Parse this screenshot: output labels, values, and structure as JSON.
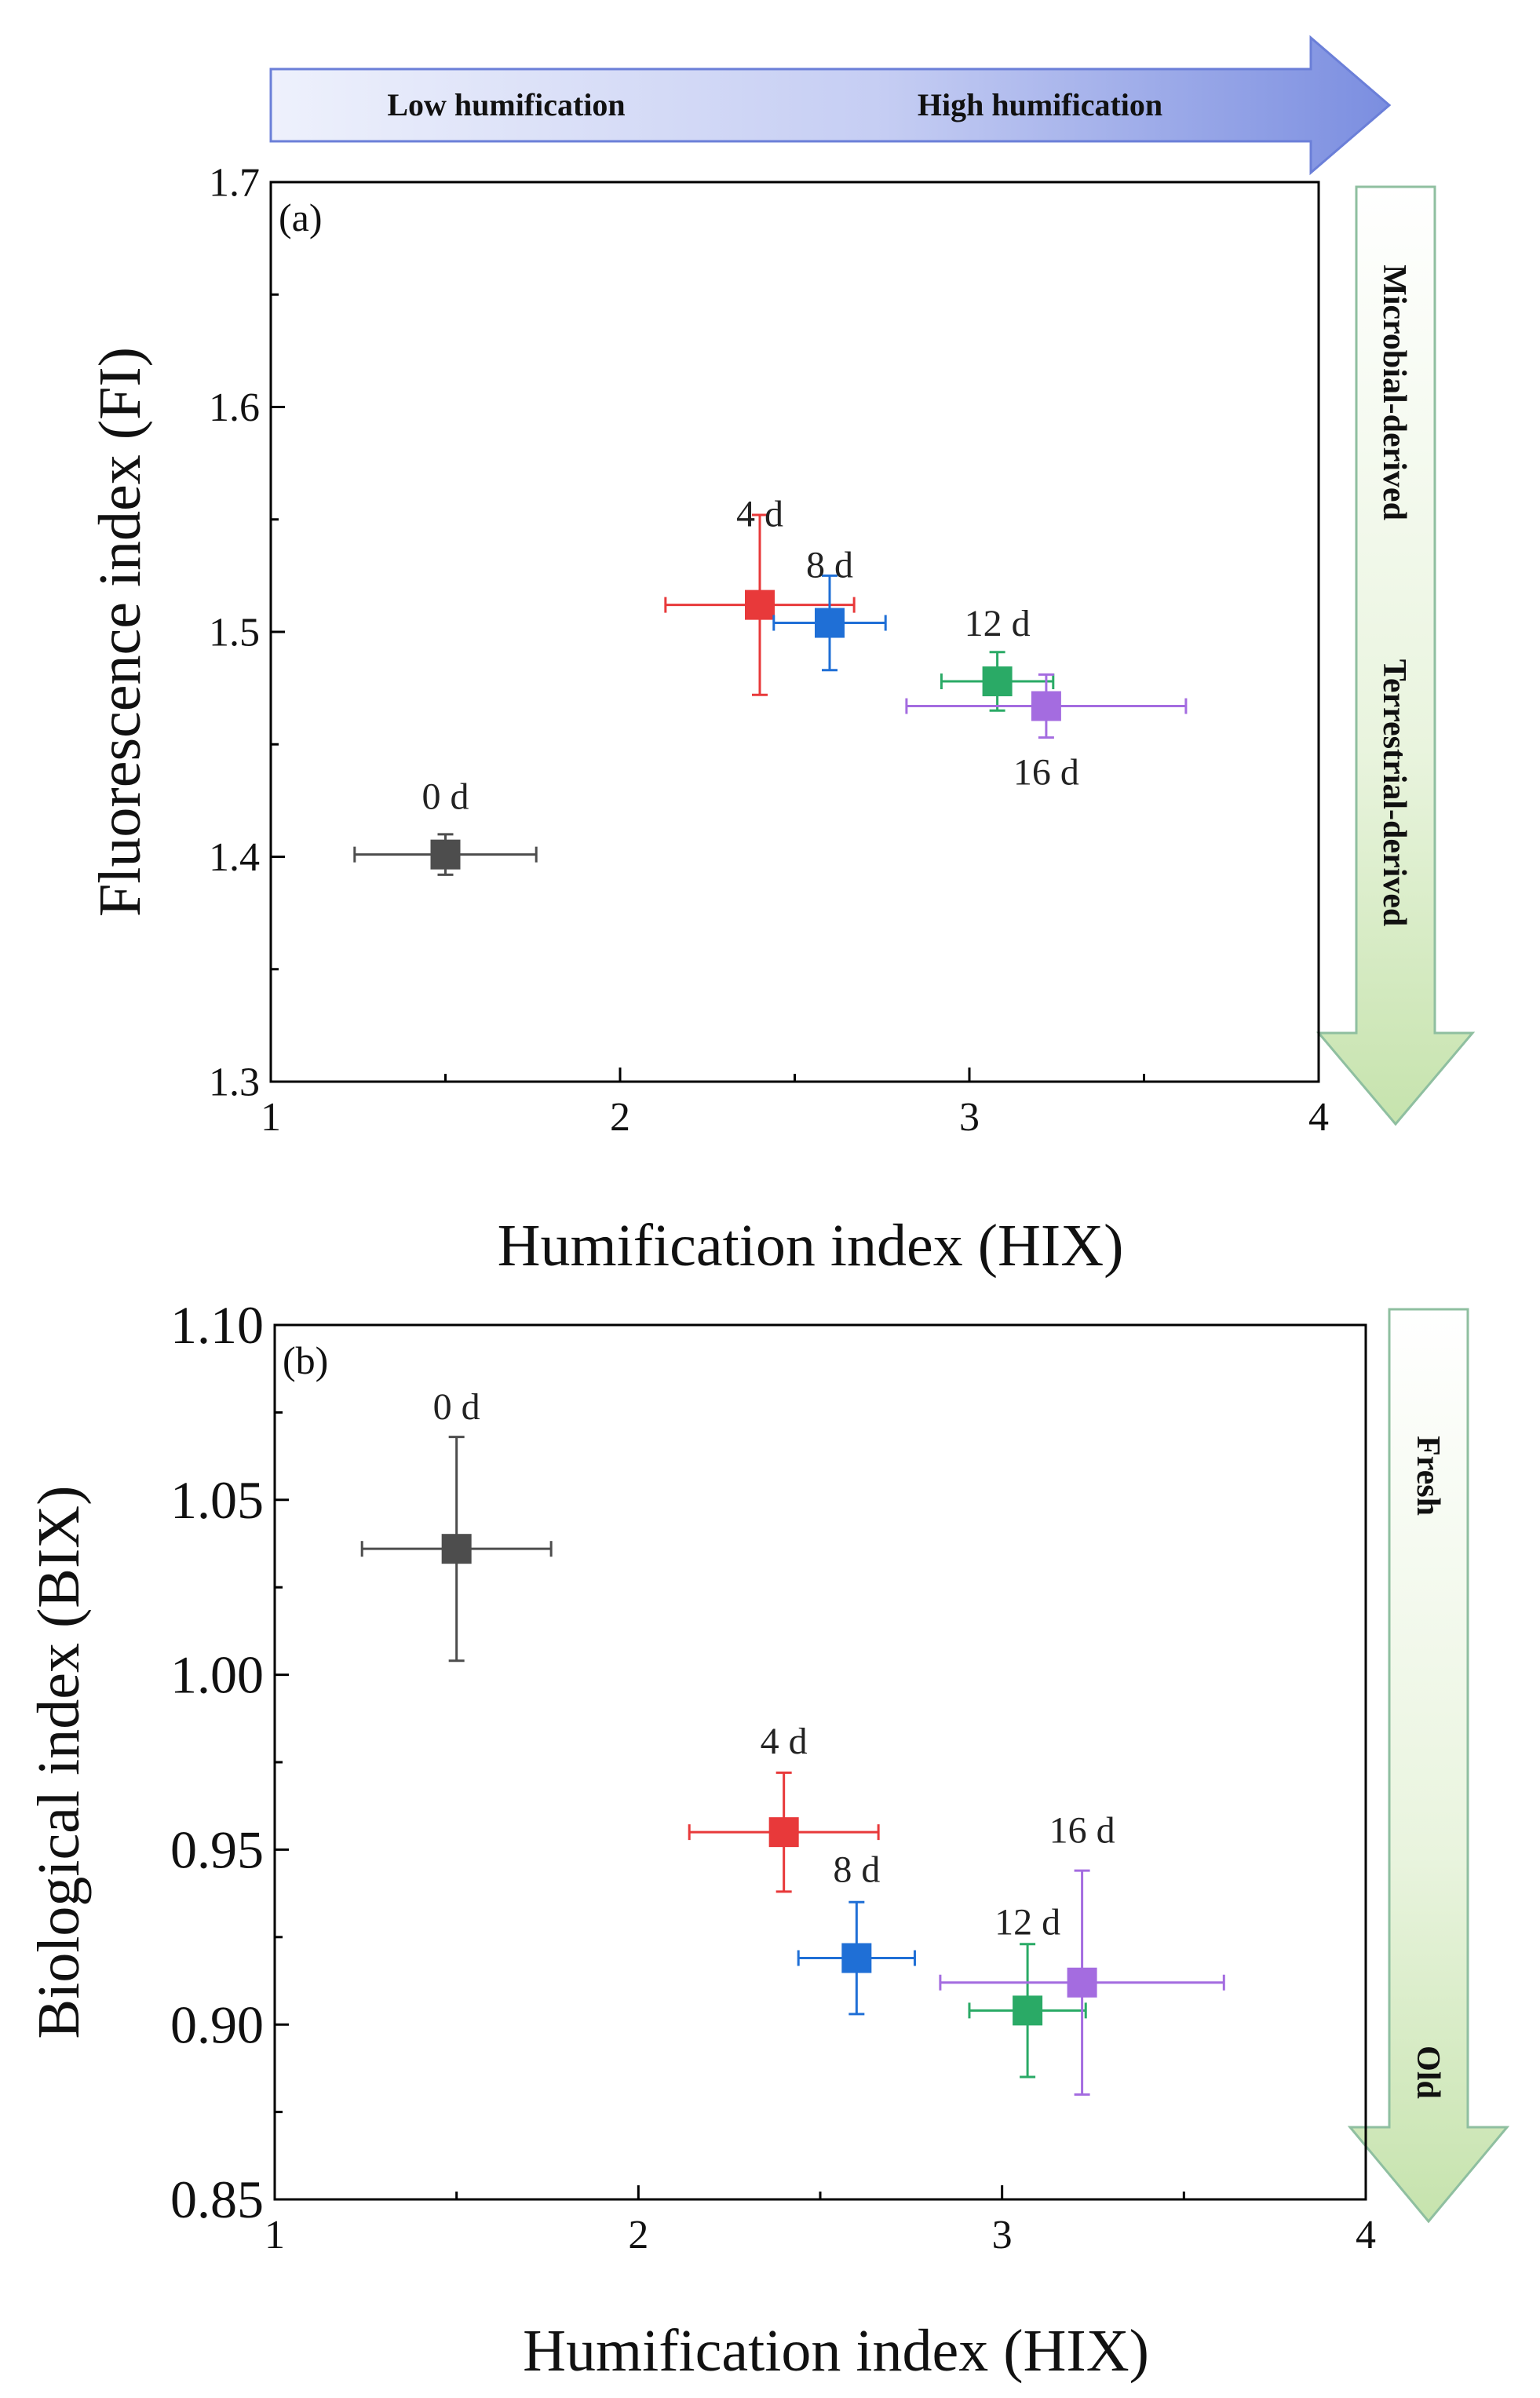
{
  "header_arrow": {
    "left_label": "Low humification",
    "right_label": "High humification"
  },
  "colors": {
    "d0": "#4d4d4d",
    "d4": "#e8393a",
    "d8": "#1f6fd6",
    "d12": "#2aaa66",
    "d16": "#a46ce0",
    "arrow_blue": "#7d8fe0",
    "arrow_green": "#c9e5b3"
  },
  "chart_data": [
    {
      "type": "scatter",
      "panel_label": "(a)",
      "xlabel": "Humification index (HIX)",
      "ylabel": "Fluorescence index (FI)",
      "xlim": [
        1,
        4
      ],
      "ylim": [
        1.3,
        1.7
      ],
      "xticks": [
        1,
        2,
        3,
        4
      ],
      "xtick_labels": [
        "1",
        "2",
        "3",
        "4"
      ],
      "yticks": [
        1.3,
        1.4,
        1.5,
        1.6,
        1.7
      ],
      "ytick_labels": [
        "1.3",
        "1.4",
        "1.5",
        "1.6",
        "1.7"
      ],
      "side_arrow": {
        "top_label": "Microbial-derived",
        "bottom_label": "Terrestrial-derived"
      },
      "points": [
        {
          "label": "0 d",
          "x": 1.5,
          "y": 1.401,
          "x_err": 0.26,
          "y_err": 0.009,
          "color": "#4d4d4d"
        },
        {
          "label": "4 d",
          "x": 2.4,
          "y": 1.512,
          "x_err": 0.27,
          "y_err": 0.04,
          "color": "#e8393a"
        },
        {
          "label": "8 d",
          "x": 2.6,
          "y": 1.504,
          "x_err": 0.16,
          "y_err": 0.021,
          "color": "#1f6fd6"
        },
        {
          "label": "12 d",
          "x": 3.08,
          "y": 1.478,
          "x_err": 0.16,
          "y_err": 0.013,
          "color": "#2aaa66"
        },
        {
          "label": "16 d",
          "x": 3.22,
          "y": 1.467,
          "x_err": 0.4,
          "y_err": 0.014,
          "color": "#a46ce0"
        }
      ]
    },
    {
      "type": "scatter",
      "panel_label": "(b)",
      "xlabel": "Humification index (HIX)",
      "ylabel": "Biological index (BIX)",
      "xlim": [
        1,
        4
      ],
      "ylim": [
        0.85,
        1.1
      ],
      "xticks": [
        1,
        2,
        3,
        4
      ],
      "xtick_labels": [
        "1",
        "2",
        "3",
        "4"
      ],
      "yticks": [
        0.85,
        0.9,
        0.95,
        1.0,
        1.05,
        1.1
      ],
      "ytick_labels": [
        "0.85",
        "0.90",
        "0.95",
        "1.00",
        "1.05",
        "1.10"
      ],
      "side_arrow": {
        "top_label": "Fresh",
        "bottom_label": "Old"
      },
      "points": [
        {
          "label": "0 d",
          "x": 1.5,
          "y": 1.036,
          "x_err": 0.26,
          "y_err": 0.032,
          "color": "#4d4d4d"
        },
        {
          "label": "4 d",
          "x": 2.4,
          "y": 0.955,
          "x_err": 0.26,
          "y_err": 0.017,
          "color": "#e8393a"
        },
        {
          "label": "8 d",
          "x": 2.6,
          "y": 0.919,
          "x_err": 0.16,
          "y_err": 0.016,
          "color": "#1f6fd6"
        },
        {
          "label": "12 d",
          "x": 3.07,
          "y": 0.904,
          "x_err": 0.16,
          "y_err": 0.019,
          "color": "#2aaa66"
        },
        {
          "label": "16 d",
          "x": 3.22,
          "y": 0.912,
          "x_err": 0.39,
          "y_err": 0.032,
          "color": "#a46ce0"
        }
      ]
    }
  ]
}
